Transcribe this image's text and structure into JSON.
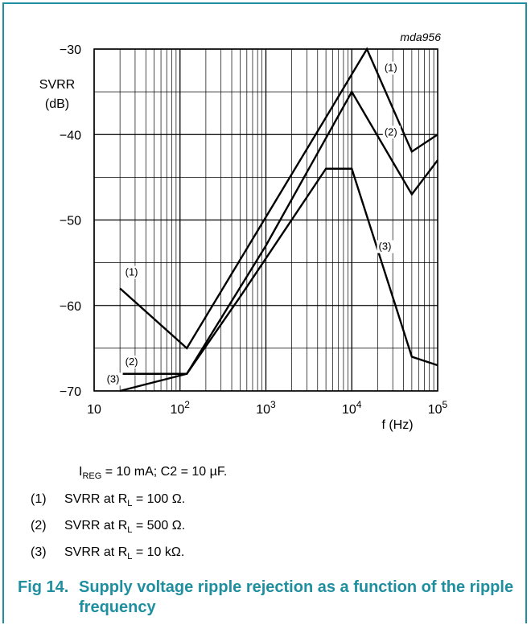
{
  "chart_data": {
    "type": "line",
    "x_scale": "log",
    "xlim": [
      10,
      100000
    ],
    "ylim": [
      -70,
      -30
    ],
    "x_ticks": [
      10,
      100,
      1000,
      10000,
      100000
    ],
    "x_tick_labels": [
      {
        "base": "10",
        "exp": ""
      },
      {
        "base": "10",
        "exp": "2"
      },
      {
        "base": "10",
        "exp": "3"
      },
      {
        "base": "10",
        "exp": "4"
      },
      {
        "base": "10",
        "exp": "5"
      }
    ],
    "y_ticks": [
      -30,
      -40,
      -50,
      -60,
      -70
    ],
    "y_tick_labels": [
      "−30",
      "−40",
      "−50",
      "−60",
      "−70"
    ],
    "ylabel_line1": "SVRR",
    "ylabel_line2": "(dB)",
    "xlabel": "f (Hz)",
    "grid": true,
    "figure_id": "mda956",
    "series": [
      {
        "name": "(1)",
        "points": [
          [
            20,
            -58
          ],
          [
            120,
            -65
          ],
          [
            5000,
            -38
          ],
          [
            15000,
            -30
          ],
          [
            50000,
            -42
          ],
          [
            100000,
            -40
          ]
        ]
      },
      {
        "name": "(2)",
        "points": [
          [
            20,
            -68
          ],
          [
            120,
            -68
          ],
          [
            1000,
            -53
          ],
          [
            10000,
            -35
          ],
          [
            50000,
            -47
          ],
          [
            100000,
            -43
          ]
        ]
      },
      {
        "name": "(3)",
        "points": [
          [
            20,
            -70
          ],
          [
            120,
            -68
          ],
          [
            500,
            -59
          ],
          [
            5000,
            -44
          ],
          [
            10000,
            -44
          ],
          [
            50000,
            -66
          ],
          [
            100000,
            -67
          ]
        ]
      }
    ],
    "series_label_positions": [
      {
        "label": "(1)",
        "x": 24000,
        "y": -32.6
      },
      {
        "label": "(2)",
        "x": 24000,
        "y": -40.1
      },
      {
        "label": "(3)",
        "x": 20500,
        "y": -53.5
      },
      {
        "label": "(1)",
        "x": 23,
        "y": -56.5
      },
      {
        "label": "(2)",
        "x": 23,
        "y": -67.0
      },
      {
        "label": "(3)",
        "x": 14,
        "y": -69.0
      }
    ]
  },
  "conditions": {
    "i_sym": "I",
    "i_sub": "REG",
    "i_rest": " = 10 mA; C2 = 10 µF."
  },
  "legend": [
    {
      "num": "(1)",
      "text": "SVRR at R",
      "sub": "L",
      "rest": " = 100 Ω."
    },
    {
      "num": "(2)",
      "text": "SVRR at R",
      "sub": "L",
      "rest": " = 500 Ω."
    },
    {
      "num": "(3)",
      "text": "SVRR at R",
      "sub": "L",
      "rest": " = 10 kΩ."
    }
  ],
  "caption": {
    "label": "Fig 14.",
    "text": "Supply voltage ripple rejection as a function of the ripple frequency"
  },
  "colors": {
    "accent": "#1f8fa0",
    "line": "#000000"
  }
}
